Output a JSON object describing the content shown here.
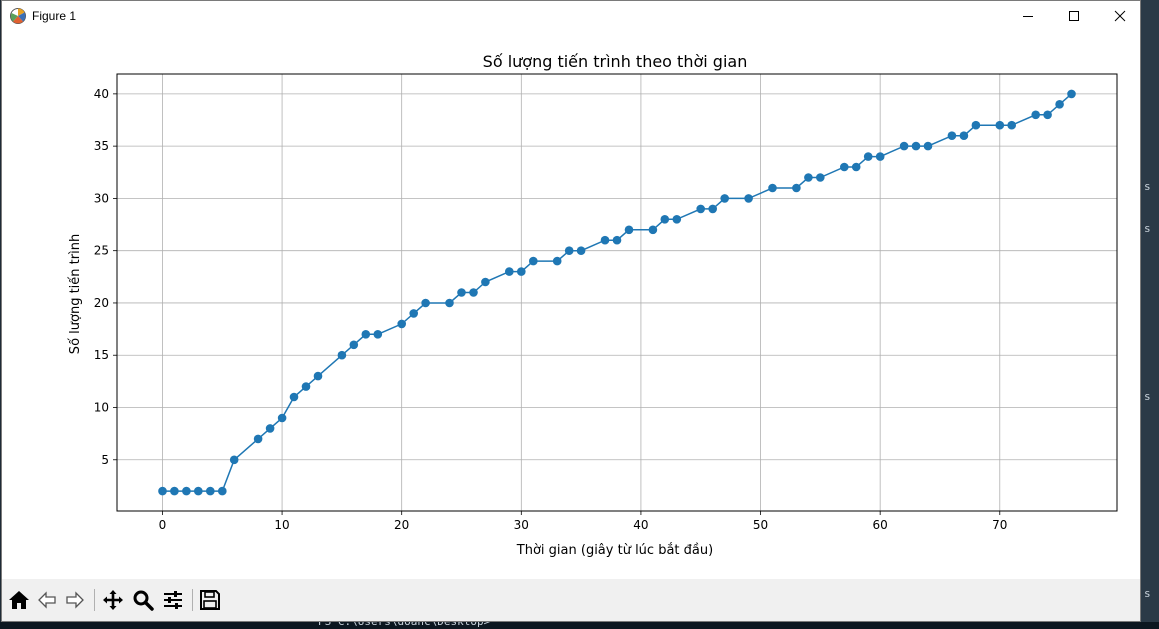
{
  "window": {
    "title": "Figure 1"
  },
  "toolbar": {
    "buttons": [
      "home-icon",
      "back-arrow-icon",
      "forward-arrow-icon",
      "pan-icon",
      "zoom-icon",
      "configure-subplots-icon",
      "save-icon"
    ]
  },
  "background": {
    "terminal_text": "PS C:\\Users\\doanc\\Desktop>",
    "side_marks": [
      "s",
      "s",
      "s",
      "s"
    ]
  },
  "colors": {
    "line": "#1f77b4",
    "grid": "#b0b0b0"
  },
  "chart_data": {
    "type": "line",
    "title": "Số lượng tiến trình theo thời gian",
    "xlabel": "Thời gian (giây từ lúc bắt đầu)",
    "ylabel": "Số lượng tiến trình",
    "xlim": [
      -3.8,
      79.8
    ],
    "ylim": [
      0.1,
      41.9
    ],
    "xticks": [
      0,
      10,
      20,
      30,
      40,
      50,
      60,
      70
    ],
    "yticks": [
      5,
      10,
      15,
      20,
      25,
      30,
      35,
      40
    ],
    "grid": true,
    "marker": "circle",
    "x": [
      0,
      1,
      2,
      3,
      4,
      5,
      6,
      8,
      9,
      10,
      11,
      12,
      13,
      15,
      16,
      17,
      18,
      20,
      21,
      22,
      24,
      25,
      26,
      27,
      29,
      30,
      31,
      33,
      34,
      35,
      37,
      38,
      39,
      41,
      42,
      43,
      45,
      46,
      47,
      49,
      51,
      53,
      54,
      55,
      57,
      58,
      59,
      60,
      62,
      63,
      64,
      66,
      67,
      68,
      70,
      71,
      73,
      74,
      75,
      76
    ],
    "y": [
      2,
      2,
      2,
      2,
      2,
      2,
      5,
      7,
      8,
      9,
      11,
      12,
      13,
      15,
      16,
      17,
      17,
      18,
      19,
      20,
      20,
      21,
      21,
      22,
      23,
      23,
      24,
      24,
      25,
      25,
      26,
      26,
      27,
      27,
      28,
      28,
      29,
      29,
      30,
      30,
      31,
      31,
      32,
      32,
      33,
      33,
      34,
      34,
      35,
      35,
      35,
      36,
      36,
      37,
      37,
      37,
      38,
      38,
      39,
      40
    ]
  }
}
